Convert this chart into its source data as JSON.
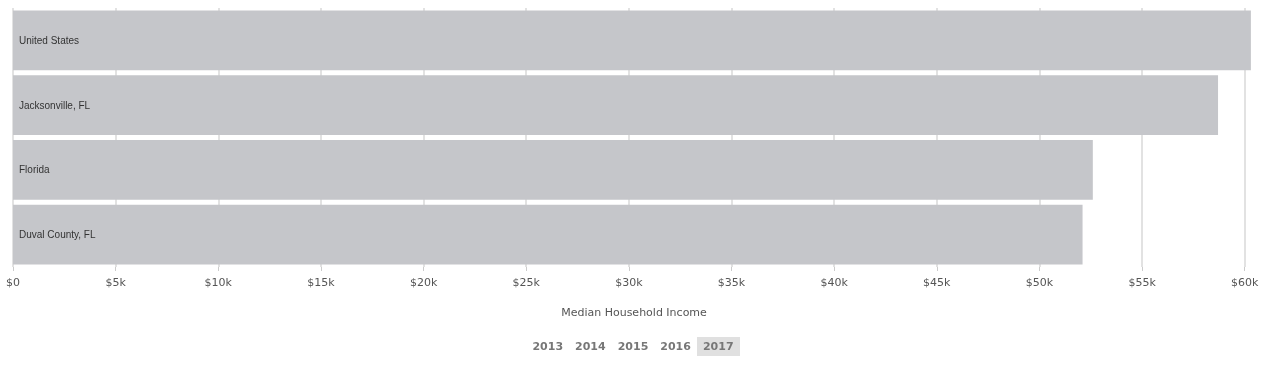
{
  "chart_data": {
    "type": "bar",
    "orientation": "horizontal",
    "xlabel": "Median Household Income",
    "categories": [
      "United States",
      "Jacksonville, FL",
      "Florida",
      "Duval County, FL"
    ],
    "values": [
      60300,
      58700,
      52600,
      52100
    ],
    "color": "#c5c6ca",
    "xlim": [
      0,
      60500
    ],
    "xticks": [
      {
        "value": 0,
        "label": "$0"
      },
      {
        "value": 5000,
        "label": "$5k"
      },
      {
        "value": 10000,
        "label": "$10k"
      },
      {
        "value": 15000,
        "label": "$15k"
      },
      {
        "value": 20000,
        "label": "$20k"
      },
      {
        "value": 25000,
        "label": "$25k"
      },
      {
        "value": 30000,
        "label": "$30k"
      },
      {
        "value": 35000,
        "label": "$35k"
      },
      {
        "value": 40000,
        "label": "$40k"
      },
      {
        "value": 45000,
        "label": "$45k"
      },
      {
        "value": 50000,
        "label": "$50k"
      },
      {
        "value": 55000,
        "label": "$55k"
      },
      {
        "value": 60000,
        "label": "$60k"
      }
    ],
    "grid": "x",
    "annotations": [
      "2013",
      "2014",
      "2015",
      "2016",
      "2017"
    ]
  }
}
